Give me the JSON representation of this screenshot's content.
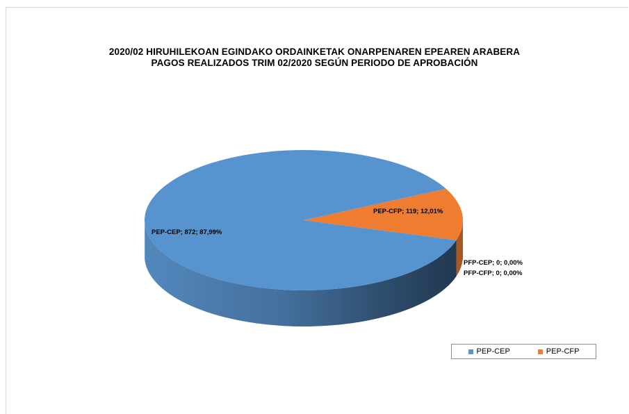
{
  "chart_data": {
    "type": "pie",
    "title": "2020/02 HIRUHILEKOAN EGINDAKO ORDAINKETAK ONARPENAREN EPEAREN ARABERA",
    "subtitle": "PAGOS REALIZADOS TRIM 02/2020 SEGÚN PERIODO DE APROBACIÓN",
    "three_d": true,
    "legend_position": "bottom-right",
    "slices": [
      {
        "name": "PEP-CEP",
        "value": 872,
        "percent": 87.99,
        "label": "PEP-CEP; 872; 87,99%",
        "color": "#5794cf"
      },
      {
        "name": "PEP-CFP",
        "value": 119,
        "percent": 12.01,
        "label": "PEP-CFP; 119; 12,01%",
        "color": "#ee7d32"
      },
      {
        "name": "PFP-CEP",
        "value": 0,
        "percent": 0.0,
        "label": "PFP-CEP; 0; 0,00%",
        "color": "#a5a5a5"
      },
      {
        "name": "PFP-CFP",
        "value": 0,
        "percent": 0.0,
        "label": "PFP-CFP; 0; 0,00%",
        "color": "#ffc000"
      }
    ],
    "legend": [
      {
        "name": "PEP-CEP",
        "color": "#5794cf"
      },
      {
        "name": "PEP-CFP",
        "color": "#ee7d32"
      }
    ]
  }
}
